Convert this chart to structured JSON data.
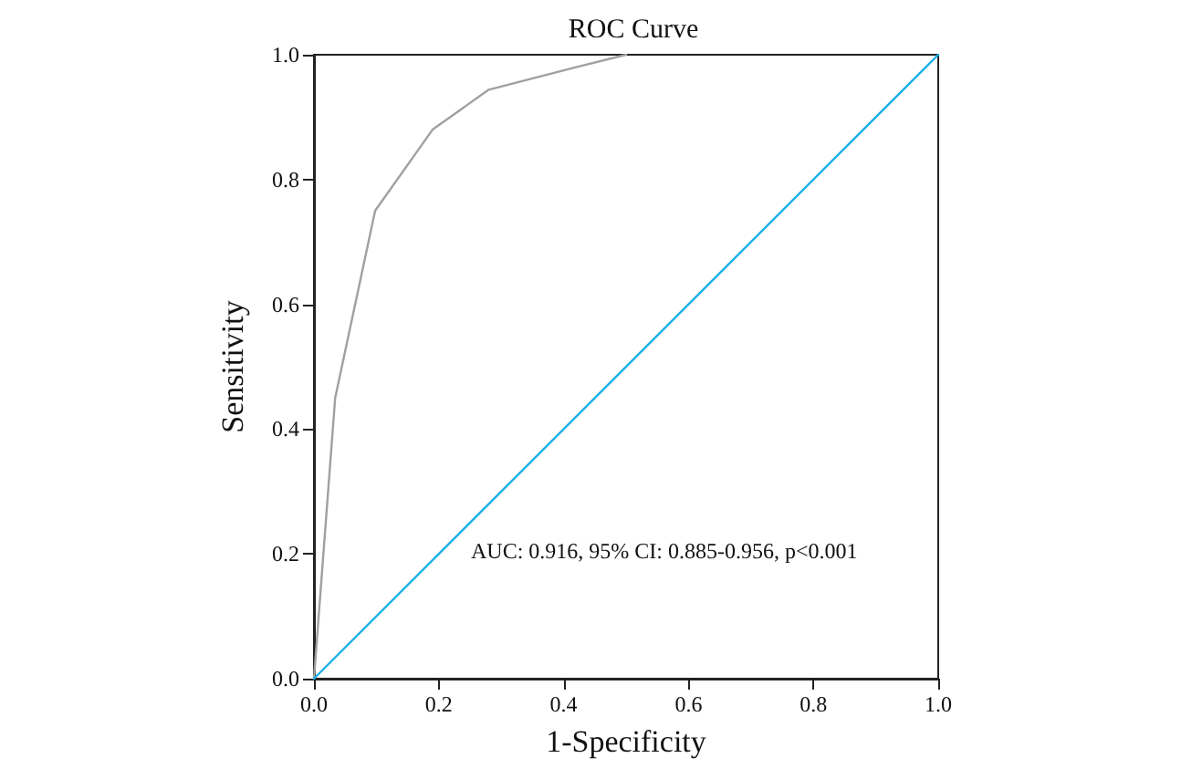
{
  "chart_data": {
    "type": "line",
    "title": "ROC Curve",
    "xlabel": "1-Specificity",
    "ylabel": "Sensitivity",
    "series": [
      {
        "x": [
          0,
          0.034,
          0.098,
          0.19,
          0.28,
          0.42,
          0.5
        ],
        "values": [
          0,
          0.45,
          0.75,
          0.88,
          0.944,
          0.98,
          1.0
        ],
        "color": "#a0a0a0"
      },
      {
        "x": [
          0,
          1
        ],
        "values": [
          0,
          1
        ],
        "color": "#1ab0e8"
      }
    ],
    "xlim": [
      0,
      1
    ],
    "ylim": [
      0,
      1
    ],
    "xticks": [
      {
        "value": 0,
        "label": "0.0"
      },
      0.2,
      0.4,
      0.6,
      0.8,
      {
        "value": 1,
        "label": "1.0"
      }
    ],
    "yticks": [
      {
        "value": 0,
        "label": "0.0"
      },
      0.2,
      0.4,
      0.6,
      0.8,
      {
        "value": 1,
        "label": "1.0"
      }
    ],
    "annotations": [
      "AUC: 0.916, 95% CI: 0.885-0.956, p<0.001"
    ],
    "grid": false,
    "marker": "none",
    "line_style": "solid"
  }
}
